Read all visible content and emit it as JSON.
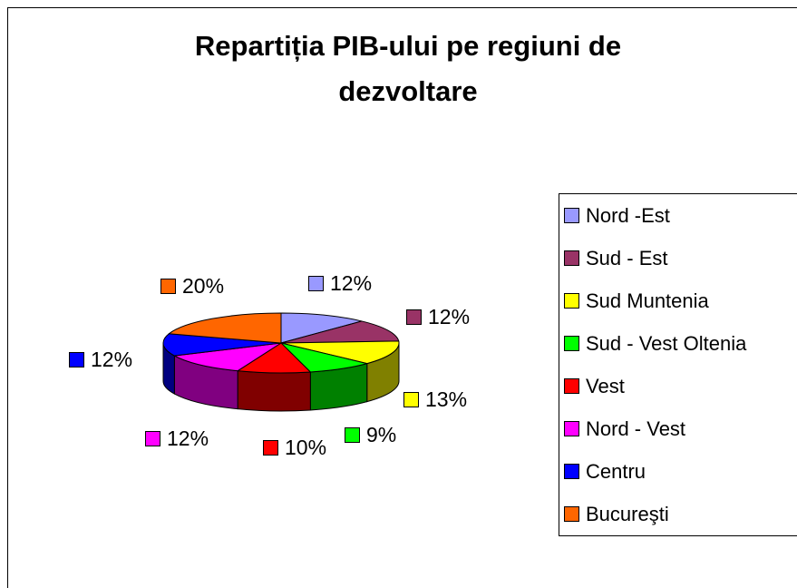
{
  "chart_data": {
    "type": "pie",
    "title": "Repartiția PIB-ului pe regiuni de dezvoltare",
    "categories": [
      "Nord -Est",
      "Sud - Est",
      "Sud Muntenia",
      "Sud - Vest Oltenia",
      "Vest",
      "Nord - Vest",
      "Centru",
      "Bucureşti"
    ],
    "values": [
      12,
      12,
      13,
      9,
      10,
      12,
      12,
      20
    ],
    "value_labels": [
      "12%",
      "12%",
      "13%",
      "9%",
      "10%",
      "12%",
      "12%",
      "20%"
    ],
    "colors": [
      "#9999ff",
      "#993366",
      "#ffff00",
      "#00ff00",
      "#ff0000",
      "#ff00ff",
      "#0000ff",
      "#ff6600"
    ],
    "legend": "right"
  }
}
